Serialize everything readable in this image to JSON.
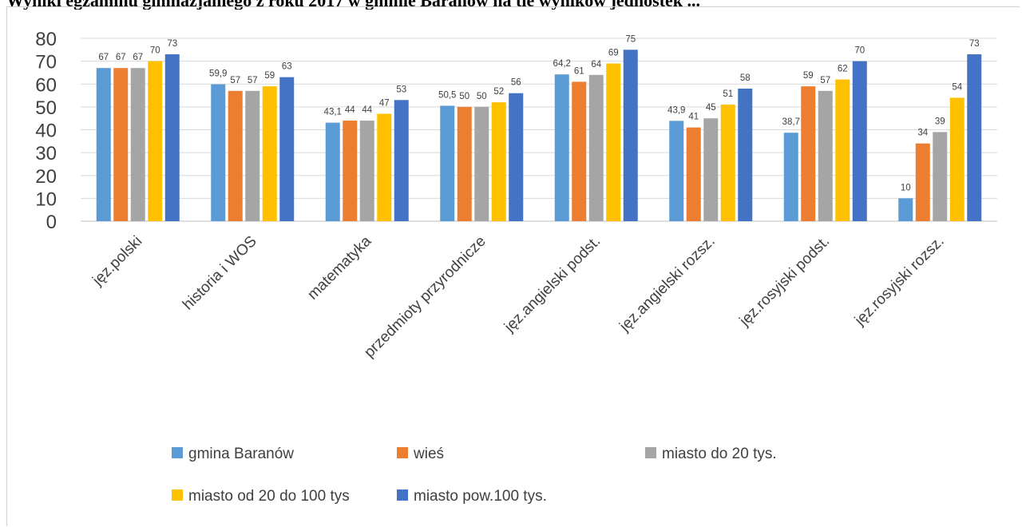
{
  "caption": "Wyniki egzaminu gimnazjalnego z roku 2017 w gminie Baranów na tle wyników jednostek ...",
  "chart_data": {
    "type": "bar",
    "categories": [
      "jęz.polski",
      "historia i WOS",
      "matematyka",
      "przedmioty przyrodnicze",
      "jęz.angielski podst.",
      "jęz.angielski rozsz.",
      "jęz.rosyjski podst.",
      "jęz.rosyjski rozsz."
    ],
    "series": [
      {
        "name": "gmina Baranów",
        "color": "#5b9bd5",
        "values": [
          67,
          59.9,
          43.1,
          50.5,
          64.2,
          43.9,
          38.7,
          10
        ],
        "labels": [
          "67",
          "59,9",
          "43,1",
          "50,5",
          "64,2",
          "43,9",
          "38,7",
          "10"
        ]
      },
      {
        "name": "wieś",
        "color": "#ed7d31",
        "values": [
          67,
          57,
          44,
          50,
          61,
          41,
          59,
          34
        ],
        "labels": [
          "67",
          "57",
          "44",
          "50",
          "61",
          "41",
          "59",
          "34"
        ]
      },
      {
        "name": "miasto do 20 tys.",
        "color": "#a5a5a5",
        "values": [
          67,
          57,
          44,
          50,
          64,
          45,
          57,
          39
        ],
        "labels": [
          "67",
          "57",
          "44",
          "50",
          "64",
          "45",
          "57",
          "39"
        ]
      },
      {
        "name": "miasto od 20 do 100 tys",
        "color": "#ffc000",
        "values": [
          70,
          59,
          47,
          52,
          69,
          51,
          62,
          54
        ],
        "labels": [
          "70",
          "59",
          "47",
          "52",
          "69",
          "51",
          "62",
          "54"
        ]
      },
      {
        "name": "miasto pow.100 tys.",
        "color": "#4472c4",
        "values": [
          73,
          63,
          53,
          56,
          75,
          58,
          70,
          73
        ],
        "labels": [
          "73",
          "63",
          "53",
          "56",
          "75",
          "58",
          "70",
          "73"
        ]
      }
    ],
    "ylim": [
      0,
      80
    ],
    "yticks": [
      0,
      10,
      20,
      30,
      40,
      50,
      60,
      70,
      80
    ],
    "grid": true,
    "legend_position": "bottom",
    "title": "",
    "xlabel": "",
    "ylabel": ""
  }
}
